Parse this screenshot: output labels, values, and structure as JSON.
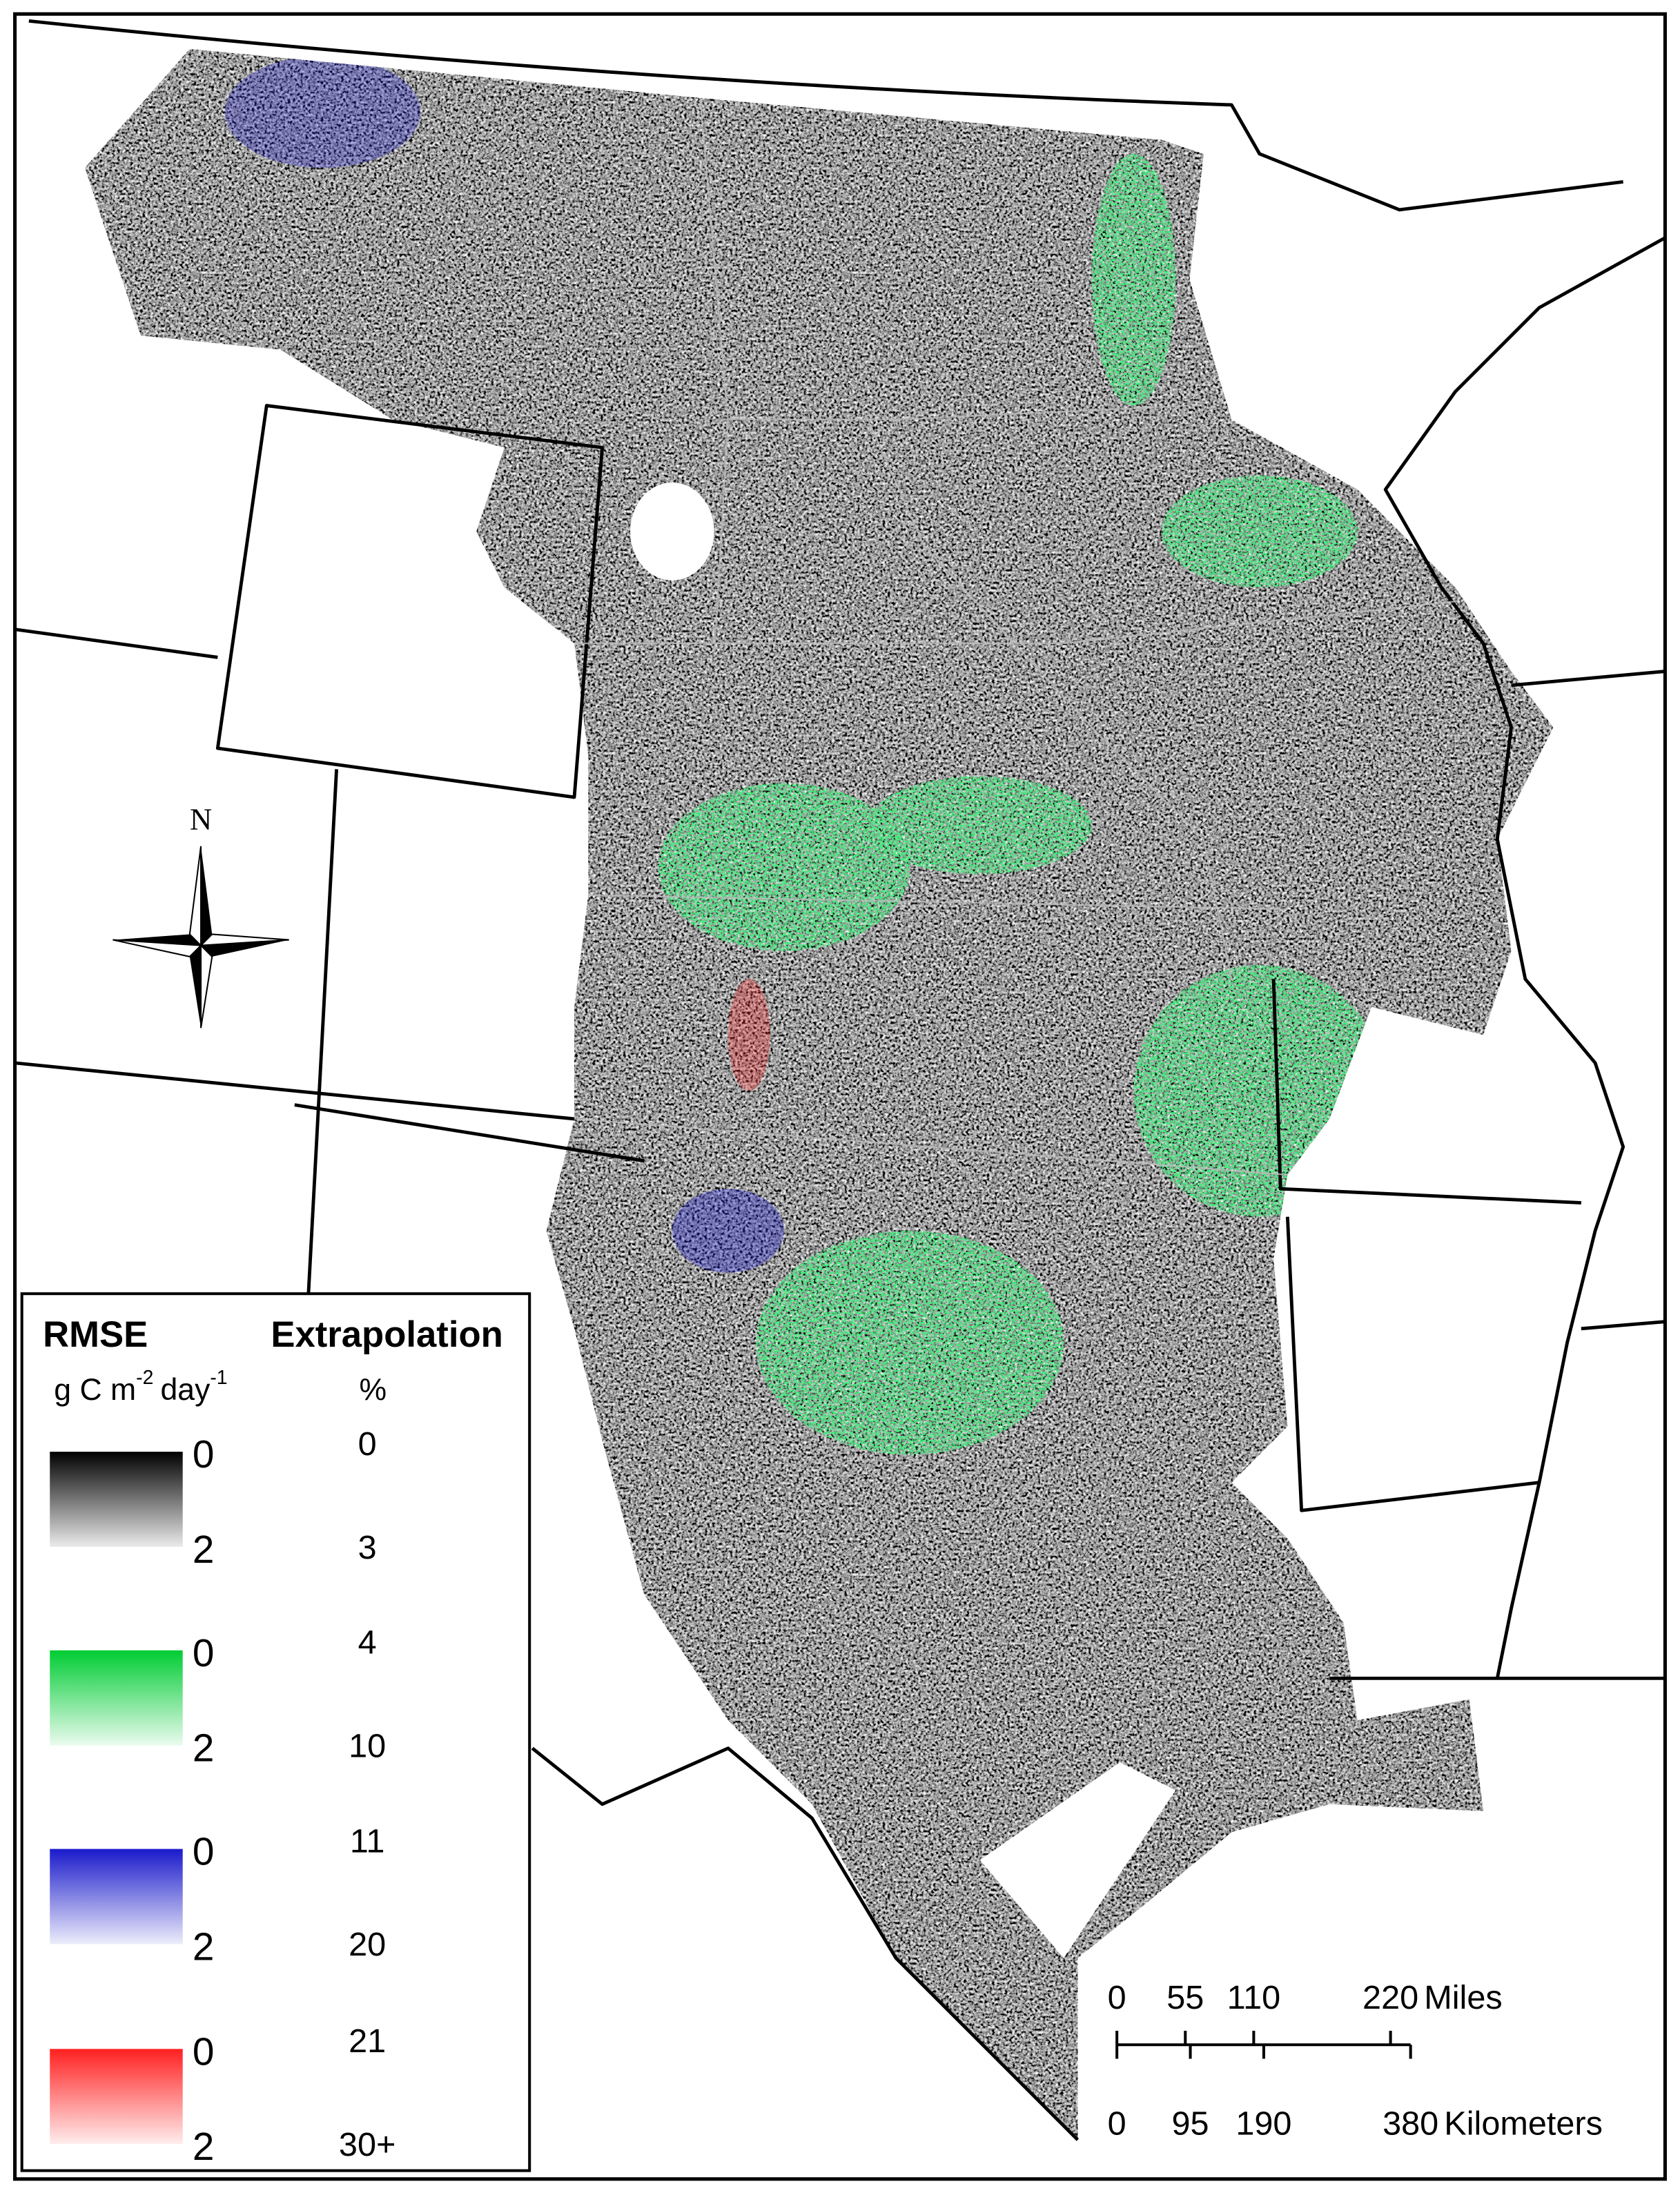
{
  "north_arrow": {
    "label": "N"
  },
  "legend": {
    "rmse_title": "RMSE",
    "extrapolation_title": "Extrapolation",
    "rmse_unit": [
      "g C m",
      "-2",
      "day",
      "-1"
    ],
    "extrapolation_unit": "%",
    "items": [
      {
        "color": "#000000",
        "rmse_min": "0",
        "rmse_max": "2",
        "extrap_min": "0",
        "extrap_max": "3"
      },
      {
        "color": "#00cc33",
        "rmse_min": "0",
        "rmse_max": "2",
        "extrap_min": "4",
        "extrap_max": "10"
      },
      {
        "color": "#1a1acc",
        "rmse_min": "0",
        "rmse_max": "2",
        "extrap_min": "11",
        "extrap_max": "20"
      },
      {
        "color": "#ff2020",
        "rmse_min": "0",
        "rmse_max": "2",
        "extrap_min": "21",
        "extrap_max": "30+"
      }
    ]
  },
  "scale_bar": {
    "miles": {
      "ticks": [
        0,
        55,
        110,
        220
      ],
      "unit": "Miles"
    },
    "kilometers": {
      "ticks": [
        0,
        95,
        190,
        380
      ],
      "unit": "Kilometers"
    }
  }
}
